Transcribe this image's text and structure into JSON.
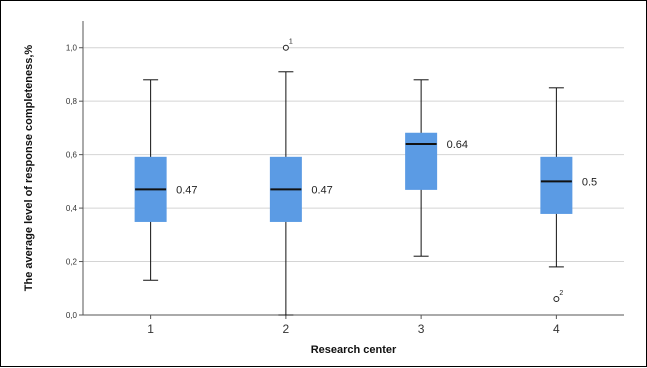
{
  "chart_data": {
    "type": "boxplot",
    "xlabel": "Research center",
    "ylabel": "The average level of response completeness,%",
    "ylim": [
      0,
      1.1
    ],
    "yticks": [
      "0,0",
      "0,2",
      "0,4",
      "0,6",
      "0,8",
      "1,0"
    ],
    "ytick_values": [
      0,
      0.2,
      0.4,
      0.6,
      0.8,
      1.0
    ],
    "grid": "horizontal",
    "box_color": "#5b9be4",
    "categories": [
      "1",
      "2",
      "3",
      "4"
    ],
    "boxes": [
      {
        "category": "1",
        "min": 0.13,
        "q1": 0.35,
        "median": 0.47,
        "q3": 0.59,
        "max": 0.88,
        "median_label": "0.47",
        "outliers": []
      },
      {
        "category": "2",
        "min": 0.0,
        "q1": 0.35,
        "median": 0.47,
        "q3": 0.59,
        "max": 0.91,
        "median_label": "0.47",
        "outliers": [
          {
            "value": 1.0,
            "label": "1"
          }
        ]
      },
      {
        "category": "3",
        "min": 0.22,
        "q1": 0.47,
        "median": 0.64,
        "q3": 0.68,
        "max": 0.88,
        "median_label": "0.64",
        "outliers": []
      },
      {
        "category": "4",
        "min": 0.18,
        "q1": 0.38,
        "median": 0.5,
        "q3": 0.59,
        "max": 0.85,
        "median_label": "0.5",
        "outliers": [
          {
            "value": 0.06,
            "label": "2"
          }
        ]
      }
    ]
  }
}
